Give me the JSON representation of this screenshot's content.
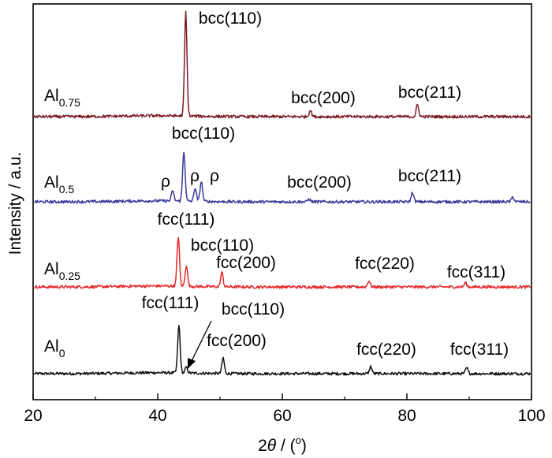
{
  "chart_data": {
    "type": "line",
    "title": "",
    "xlabel_prefix": "2",
    "xlabel_theta": "θ",
    "xlabel_suffix": " / (",
    "xlabel_degree": "o",
    "xlabel_close": ")",
    "ylabel": "Intensity / a.u.",
    "xlim": [
      20,
      100
    ],
    "x_ticks": [
      20,
      40,
      60,
      80,
      100
    ],
    "x_minor_ticks": [
      30,
      50,
      70,
      90
    ],
    "grid": false,
    "y_ticks_shown": false,
    "series": [
      {
        "name": "Al0",
        "label_base": "Al",
        "label_sub": "0",
        "color": "#111111",
        "baseline": 0.0,
        "peaks": [
          {
            "x": 43.4,
            "h": 1.0,
            "label": "fcc(111)"
          },
          {
            "x": 44.6,
            "h": 0.12,
            "label": "bcc(110)"
          },
          {
            "x": 50.5,
            "h": 0.33,
            "label": "fcc(200)"
          },
          {
            "x": 74.2,
            "h": 0.15,
            "label": "fcc(220)"
          },
          {
            "x": 89.6,
            "h": 0.12,
            "label": "fcc(311)"
          }
        ]
      },
      {
        "name": "Al0.25",
        "label_base": "Al",
        "label_sub": "0.25",
        "color": "#e8282a",
        "baseline": 1.5,
        "peaks": [
          {
            "x": 43.3,
            "h": 1.05,
            "label": "fcc(111)"
          },
          {
            "x": 44.6,
            "h": 0.45,
            "label": "bcc(110)"
          },
          {
            "x": 50.3,
            "h": 0.3,
            "label": "fcc(200)"
          },
          {
            "x": 73.9,
            "h": 0.13,
            "label": "fcc(220)"
          },
          {
            "x": 89.4,
            "h": 0.09,
            "label": "fcc(311)"
          }
        ]
      },
      {
        "name": "Al0.5",
        "label_base": "Al",
        "label_sub": "0.5",
        "color": "#3a3a9c",
        "baseline": 2.9,
        "peaks": [
          {
            "x": 42.4,
            "h": 0.22,
            "label": "ρ"
          },
          {
            "x": 44.2,
            "h": 1.05,
            "label": "bcc(110)"
          },
          {
            "x": 46.0,
            "h": 0.28,
            "label": "ρ"
          },
          {
            "x": 47.0,
            "h": 0.42,
            "label": "ρ"
          },
          {
            "x": 64.3,
            "h": 0.06,
            "label": "bcc(200)"
          },
          {
            "x": 80.9,
            "h": 0.2,
            "label": "bcc(211)"
          },
          {
            "x": 97.0,
            "h": 0.1,
            "label": ""
          }
        ]
      },
      {
        "name": "Al0.75",
        "label_base": "Al",
        "label_sub": "0.75",
        "color": "#7a1c22",
        "baseline": 4.4,
        "peaks": [
          {
            "x": 44.5,
            "h": 2.2,
            "label": "bcc(110)"
          },
          {
            "x": 64.5,
            "h": 0.14,
            "label": "bcc(200)"
          },
          {
            "x": 81.7,
            "h": 0.25,
            "label": "bcc(211)"
          }
        ]
      }
    ]
  }
}
